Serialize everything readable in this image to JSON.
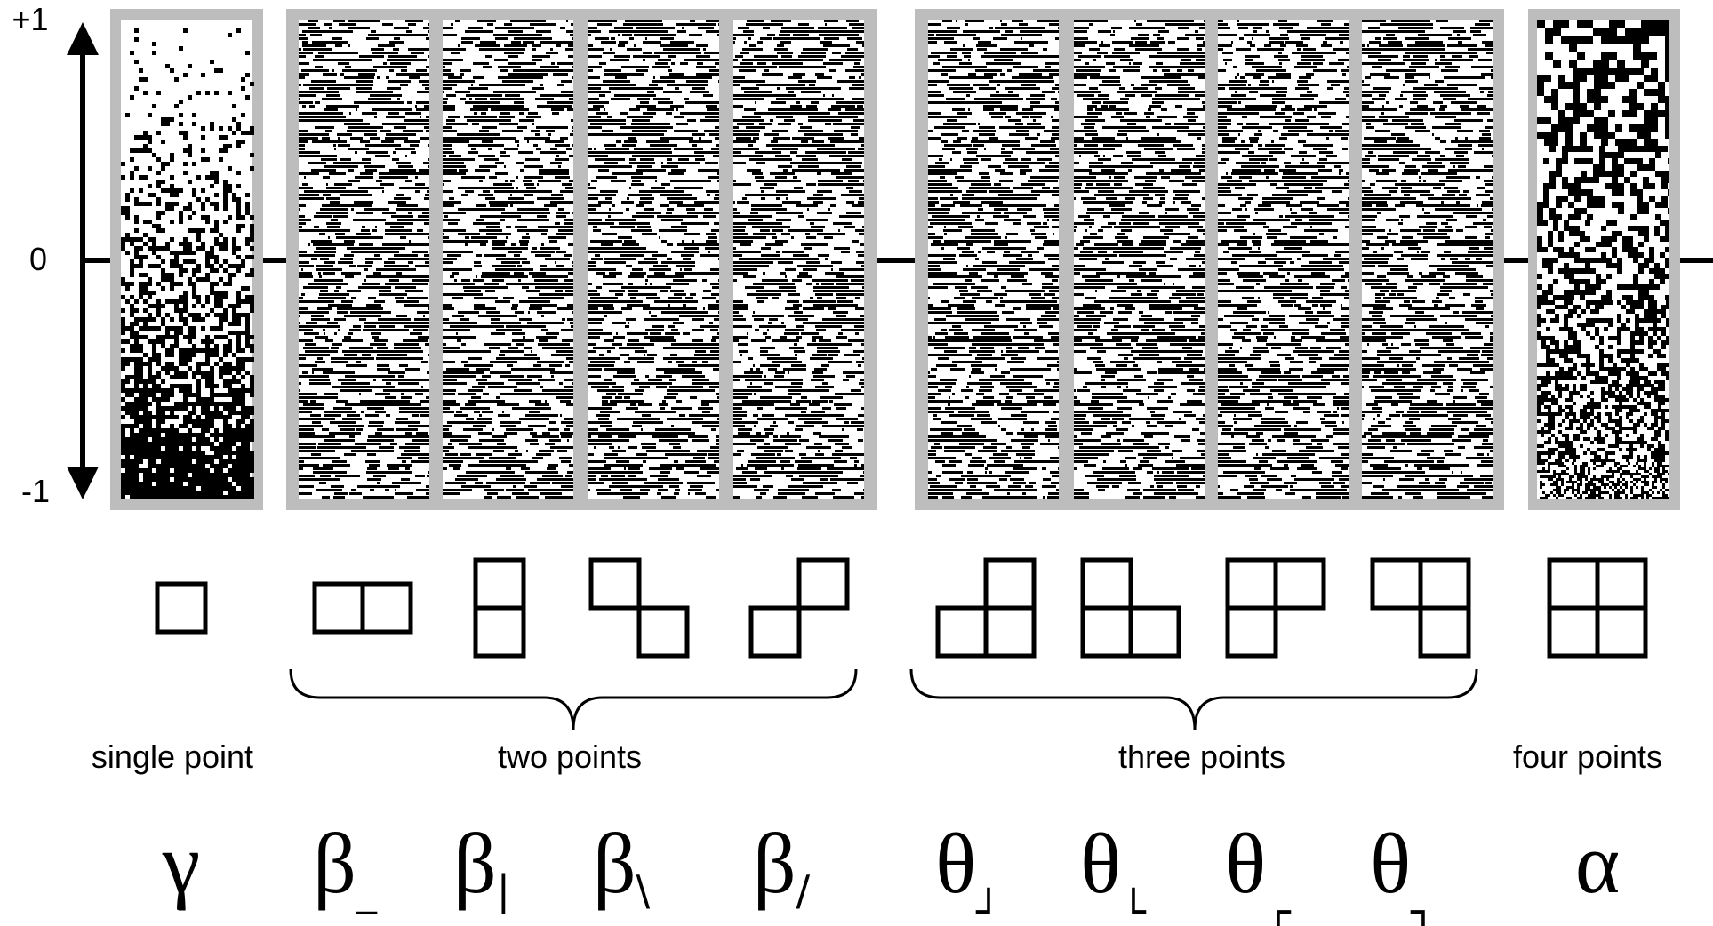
{
  "axis": {
    "top": "+1",
    "middle": "0",
    "bottom": "-1"
  },
  "groups": [
    {
      "label": "single point"
    },
    {
      "label": "two points"
    },
    {
      "label": "three points"
    },
    {
      "label": "four points"
    }
  ],
  "symbols": [
    {
      "base": "γ"
    },
    {
      "base": "β",
      "sub": "_"
    },
    {
      "base": "β",
      "sub": "|"
    },
    {
      "base": "β",
      "sub": "\\"
    },
    {
      "base": "β",
      "sub": "/"
    },
    {
      "base": "θ",
      "sub": "┘"
    },
    {
      "base": "θ",
      "sub": "└"
    },
    {
      "base": "θ",
      "sub": "┌"
    },
    {
      "base": "θ",
      "sub": "┐"
    },
    {
      "base": "α"
    }
  ]
}
